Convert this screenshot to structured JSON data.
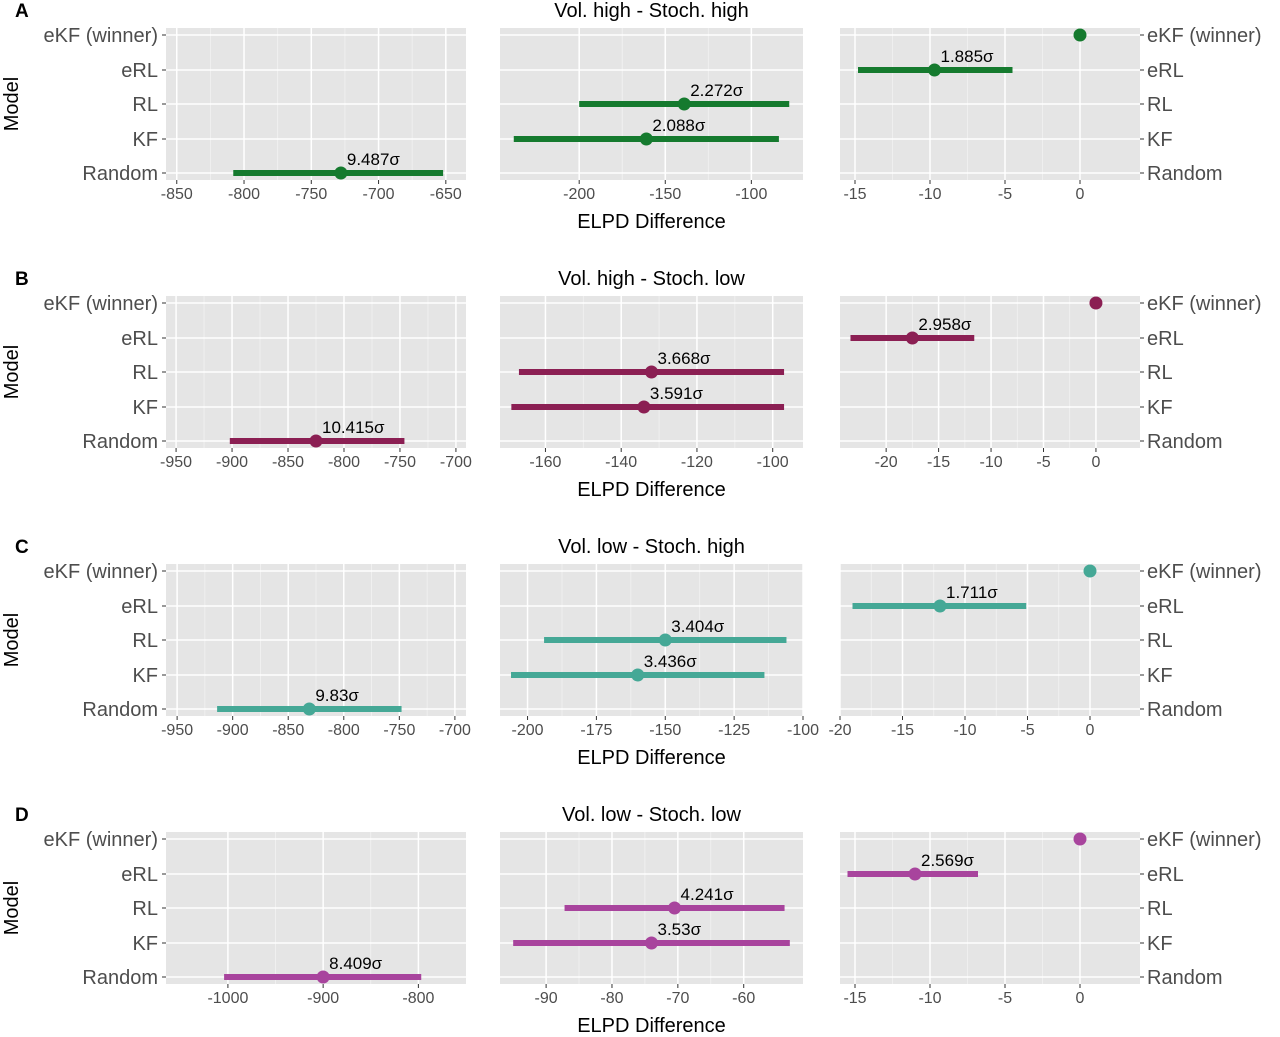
{
  "models": [
    "eKF (winner)",
    "eRL",
    "RL",
    "KF",
    "Random"
  ],
  "y_axis_label": "Model",
  "x_axis_label": "ELPD Difference",
  "chart_data": [
    {
      "type": "scatter",
      "letter": "A",
      "title": "Vol. high - Stoch. high",
      "color": "#157a2e",
      "panels": [
        {
          "xlim": [
            -858,
            -635
          ],
          "ticks": [
            -850,
            -800,
            -750,
            -700,
            -650
          ],
          "points": [
            {
              "model": "Random",
              "estimate": -728,
              "lower": -808,
              "upper": -652,
              "sigma_label": "9.487σ"
            }
          ]
        },
        {
          "xlim": [
            -246,
            -70
          ],
          "ticks": [
            -200,
            -150,
            -100
          ],
          "points": [
            {
              "model": "RL",
              "estimate": -139,
              "lower": -200,
              "upper": -78,
              "sigma_label": "2.272σ"
            },
            {
              "model": "KF",
              "estimate": -161,
              "lower": -238,
              "upper": -84,
              "sigma_label": "2.088σ"
            }
          ]
        },
        {
          "xlim": [
            -16.0,
            4.0
          ],
          "ticks": [
            -15,
            -10,
            -5,
            0
          ],
          "points": [
            {
              "model": "eKF (winner)",
              "estimate": 0,
              "lower": null,
              "upper": null,
              "sigma_label": ""
            },
            {
              "model": "eRL",
              "estimate": -9.7,
              "lower": -14.8,
              "upper": -4.5,
              "sigma_label": "1.885σ"
            }
          ]
        }
      ]
    },
    {
      "type": "scatter",
      "letter": "B",
      "title": "Vol. high - Stoch. low",
      "color": "#8b1f53",
      "panels": [
        {
          "xlim": [
            -959,
            -691
          ],
          "ticks": [
            -950,
            -900,
            -850,
            -800,
            -750,
            -700
          ],
          "points": [
            {
              "model": "Random",
              "estimate": -825,
              "lower": -902,
              "upper": -746,
              "sigma_label": "10.415σ"
            }
          ]
        },
        {
          "xlim": [
            -172,
            -92
          ],
          "ticks": [
            -160,
            -140,
            -120,
            -100
          ],
          "points": [
            {
              "model": "RL",
              "estimate": -132,
              "lower": -167,
              "upper": -97,
              "sigma_label": "3.668σ"
            },
            {
              "model": "KF",
              "estimate": -134,
              "lower": -169,
              "upper": -97,
              "sigma_label": "3.591σ"
            }
          ]
        },
        {
          "xlim": [
            -24.4,
            4.2
          ],
          "ticks": [
            -20,
            -15,
            -10,
            -5,
            0
          ],
          "points": [
            {
              "model": "eKF (winner)",
              "estimate": 0,
              "lower": null,
              "upper": null,
              "sigma_label": ""
            },
            {
              "model": "eRL",
              "estimate": -17.5,
              "lower": -23.4,
              "upper": -11.6,
              "sigma_label": "2.958σ"
            }
          ]
        }
      ]
    },
    {
      "type": "scatter",
      "letter": "C",
      "title": "Vol. low - Stoch. high",
      "color": "#45a896",
      "panels": [
        {
          "xlim": [
            -960,
            -690
          ],
          "ticks": [
            -950,
            -900,
            -850,
            -800,
            -750,
            -700
          ],
          "points": [
            {
              "model": "Random",
              "estimate": -831,
              "lower": -914,
              "upper": -748,
              "sigma_label": "9.83σ"
            }
          ]
        },
        {
          "xlim": [
            -210,
            -100
          ],
          "ticks": [
            -200,
            -175,
            -150,
            -125,
            -100
          ],
          "points": [
            {
              "model": "RL",
              "estimate": -150,
              "lower": -194,
              "upper": -106,
              "sigma_label": "3.404σ"
            },
            {
              "model": "KF",
              "estimate": -160,
              "lower": -206,
              "upper": -114,
              "sigma_label": "3.436σ"
            }
          ]
        },
        {
          "xlim": [
            -20.0,
            4.0
          ],
          "ticks": [
            -20,
            -15,
            -10,
            -5,
            0
          ],
          "points": [
            {
              "model": "eKF (winner)",
              "estimate": 0,
              "lower": null,
              "upper": null,
              "sigma_label": ""
            },
            {
              "model": "eRL",
              "estimate": -12.0,
              "lower": -19.0,
              "upper": -5.1,
              "sigma_label": "1.711σ"
            }
          ]
        }
      ]
    },
    {
      "type": "scatter",
      "letter": "D",
      "title": "Vol. low - Stoch. low",
      "color": "#a8449d",
      "panels": [
        {
          "xlim": [
            -1065,
            -750
          ],
          "ticks": [
            -1000,
            -900,
            -800
          ],
          "points": [
            {
              "model": "Random",
              "estimate": -900,
              "lower": -1004,
              "upper": -797,
              "sigma_label": "8.409σ"
            }
          ]
        },
        {
          "xlim": [
            -97,
            -51
          ],
          "ticks": [
            -90,
            -80,
            -70,
            -60
          ],
          "points": [
            {
              "model": "RL",
              "estimate": -70.5,
              "lower": -87.2,
              "upper": -53.8,
              "sigma_label": "4.241σ"
            },
            {
              "model": "KF",
              "estimate": -74,
              "lower": -95,
              "upper": -53,
              "sigma_label": "3.53σ"
            }
          ]
        },
        {
          "xlim": [
            -16.0,
            4.0
          ],
          "ticks": [
            -15,
            -10,
            -5,
            0
          ],
          "points": [
            {
              "model": "eKF (winner)",
              "estimate": 0,
              "lower": null,
              "upper": null,
              "sigma_label": ""
            },
            {
              "model": "eRL",
              "estimate": -11.0,
              "lower": -15.5,
              "upper": -6.8,
              "sigma_label": "2.569σ"
            }
          ]
        }
      ]
    }
  ]
}
